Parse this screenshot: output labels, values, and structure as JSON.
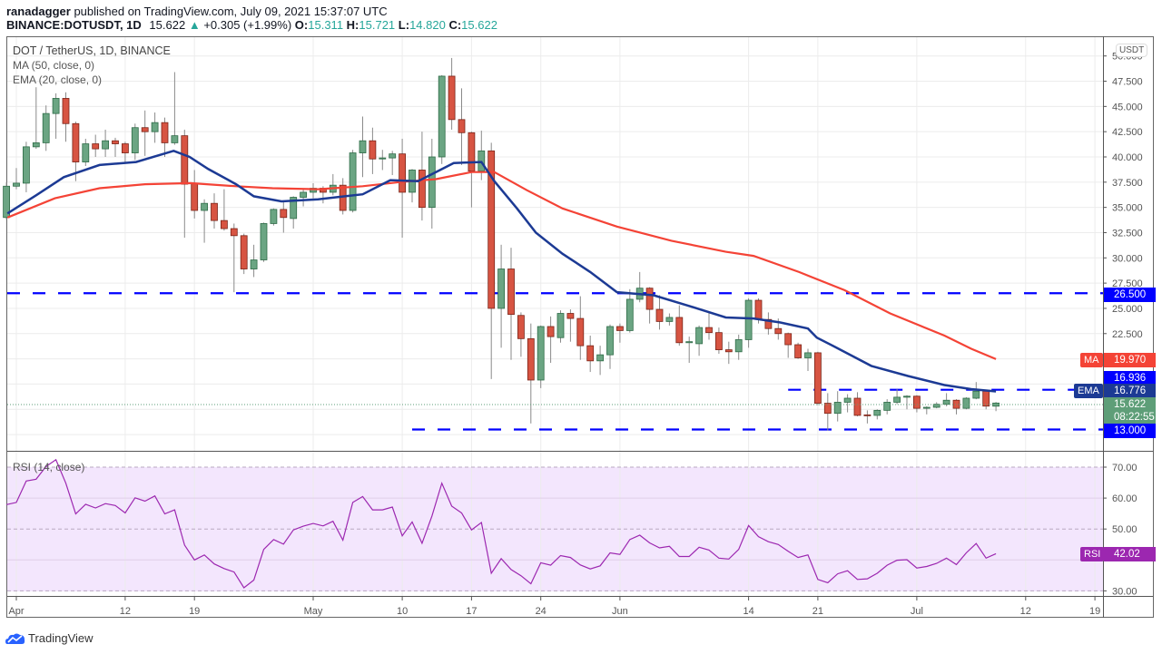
{
  "header": {
    "author": "ranadagger",
    "published_text": "published on TradingView.com, July 09, 2021 15:37:07 UTC",
    "symbol": "BINANCE:DOTUSDT, 1D",
    "last": "15.622",
    "change": "+0.305 (+1.99%)",
    "o_label": "O:",
    "o": "15.311",
    "h_label": "H:",
    "h": "15.721",
    "l_label": "L:",
    "l": "14.820",
    "c_label": "C:",
    "c": "15.622"
  },
  "legend": {
    "title": "DOT / TetherUS, 1D, BINANCE",
    "ma": "MA (50, close, 0)",
    "ema": "EMA (20, close, 0)",
    "rsi": "RSI (14, close)"
  },
  "axis": {
    "currency": "USDT",
    "price_ticks": [
      "50.000",
      "47.500",
      "45.000",
      "42.500",
      "40.000",
      "37.500",
      "35.000",
      "32.500",
      "30.000",
      "27.500",
      "25.000",
      "22.500"
    ],
    "rsi_ticks": [
      "70.00",
      "60.00",
      "50.00",
      "30.00"
    ],
    "time_ticks": [
      {
        "label": "Apr",
        "day": 0
      },
      {
        "label": "12",
        "day": 11
      },
      {
        "label": "19",
        "day": 18
      },
      {
        "label": "May",
        "day": 30
      },
      {
        "label": "10",
        "day": 39
      },
      {
        "label": "17",
        "day": 46
      },
      {
        "label": "24",
        "day": 53
      },
      {
        "label": "Jun",
        "day": 61
      },
      {
        "label": "14",
        "day": 74
      },
      {
        "label": "21",
        "day": 81
      },
      {
        "label": "Jul",
        "day": 91
      },
      {
        "label": "12",
        "day": 102
      },
      {
        "label": "19",
        "day": 109
      }
    ]
  },
  "price_labels": {
    "resistance": "26.500",
    "ma_tag": "MA",
    "ma": "19.970",
    "level2": "16.936",
    "ema_tag": "EMA",
    "ema": "16.776",
    "last": "15.622",
    "countdown": "08:22:55",
    "support": "13.000",
    "rsi_tag": "RSI",
    "rsi": "42.02"
  },
  "colors": {
    "up": "#6ba583",
    "up_border": "#2e6b47",
    "down": "#d75442",
    "down_border": "#7a2418",
    "ma": "#f44336",
    "ema": "#1c3a94",
    "hline": "#0000ff",
    "rsi": "#9c27b0",
    "last": "#5e9e78"
  },
  "chart_data": {
    "type": "candlestick",
    "title": "DOT / TetherUS, 1D, BINANCE",
    "first_day_index": -1,
    "ylim": [
      12.5,
      50
    ],
    "ohlc": [
      [
        34.0,
        37.5,
        33.8,
        37.1
      ],
      [
        37.1,
        38.9,
        36.8,
        37.4
      ],
      [
        37.4,
        41.5,
        36.5,
        41.0
      ],
      [
        41.0,
        46.9,
        40.8,
        41.4
      ],
      [
        41.4,
        45.1,
        40.6,
        44.3
      ],
      [
        44.3,
        46.3,
        41.8,
        45.8
      ],
      [
        45.8,
        46.4,
        41.5,
        43.3
      ],
      [
        43.3,
        43.5,
        37.6,
        39.5
      ],
      [
        39.5,
        41.8,
        39.1,
        41.3
      ],
      [
        41.3,
        42.2,
        40.0,
        40.8
      ],
      [
        40.8,
        42.7,
        40.0,
        41.6
      ],
      [
        41.6,
        41.9,
        40.0,
        41.3
      ],
      [
        41.3,
        41.5,
        39.4,
        40.4
      ],
      [
        40.4,
        43.3,
        39.7,
        42.9
      ],
      [
        42.9,
        44.6,
        40.1,
        42.5
      ],
      [
        42.5,
        44.4,
        41.4,
        43.4
      ],
      [
        43.4,
        43.9,
        40.0,
        41.4
      ],
      [
        41.4,
        48.4,
        41.2,
        42.1
      ],
      [
        42.1,
        42.7,
        32.0,
        37.3
      ],
      [
        37.4,
        38.7,
        33.9,
        34.7
      ],
      [
        34.7,
        35.8,
        31.5,
        35.4
      ],
      [
        35.4,
        36.4,
        32.9,
        33.7
      ],
      [
        33.7,
        36.8,
        32.7,
        32.9
      ],
      [
        32.9,
        33.4,
        26.6,
        32.2
      ],
      [
        32.2,
        32.4,
        28.4,
        28.9
      ],
      [
        28.9,
        31.3,
        28.1,
        29.8
      ],
      [
        29.8,
        33.5,
        29.6,
        33.4
      ],
      [
        33.4,
        34.9,
        33.2,
        34.8
      ],
      [
        34.8,
        35.5,
        32.5,
        34.0
      ],
      [
        33.9,
        36.1,
        32.9,
        36.0
      ],
      [
        36.0,
        36.8,
        35.1,
        36.5
      ],
      [
        36.5,
        37.4,
        35.9,
        36.9
      ],
      [
        36.9,
        37.1,
        35.4,
        36.5
      ],
      [
        36.5,
        38.3,
        36.2,
        37.2
      ],
      [
        37.2,
        37.9,
        34.3,
        34.7
      ],
      [
        34.7,
        40.7,
        34.5,
        40.4
      ],
      [
        40.4,
        44.0,
        38.0,
        41.6
      ],
      [
        41.6,
        42.9,
        38.3,
        39.8
      ],
      [
        39.8,
        40.7,
        38.7,
        39.9
      ],
      [
        39.9,
        40.6,
        38.2,
        40.3
      ],
      [
        40.3,
        41.8,
        32.0,
        36.5
      ],
      [
        36.5,
        38.8,
        35.5,
        38.7
      ],
      [
        38.7,
        42.5,
        33.7,
        35.0
      ],
      [
        35.0,
        41.8,
        32.9,
        40.0
      ],
      [
        40.0,
        48.1,
        39.3,
        48.0
      ],
      [
        48.0,
        49.8,
        42.7,
        43.7
      ],
      [
        43.7,
        46.8,
        39.2,
        42.4
      ],
      [
        42.4,
        42.5,
        35.0,
        38.6
      ],
      [
        38.6,
        42.6,
        37.7,
        40.6
      ],
      [
        40.6,
        41.4,
        18.0,
        25.0
      ],
      [
        25.0,
        31.3,
        21.1,
        28.9
      ],
      [
        28.9,
        31.0,
        19.9,
        24.4
      ],
      [
        24.3,
        24.6,
        20.2,
        22.0
      ],
      [
        22.0,
        23.5,
        13.6,
        17.9
      ],
      [
        17.9,
        23.3,
        17.1,
        23.2
      ],
      [
        23.2,
        24.2,
        19.6,
        22.2
      ],
      [
        22.1,
        24.8,
        21.6,
        24.5
      ],
      [
        24.5,
        24.9,
        21.7,
        24.0
      ],
      [
        24.0,
        26.2,
        19.9,
        21.3
      ],
      [
        21.3,
        22.3,
        18.7,
        19.8
      ],
      [
        19.8,
        21.3,
        18.4,
        20.4
      ],
      [
        20.4,
        23.4,
        19.0,
        23.2
      ],
      [
        23.2,
        23.5,
        21.6,
        22.8
      ],
      [
        22.8,
        26.9,
        22.6,
        25.9
      ],
      [
        25.9,
        28.6,
        25.6,
        27.0
      ],
      [
        27.0,
        27.1,
        23.5,
        24.9
      ],
      [
        24.9,
        26.3,
        22.9,
        23.7
      ],
      [
        23.7,
        24.5,
        23.3,
        24.1
      ],
      [
        24.1,
        25.3,
        21.3,
        21.6
      ],
      [
        21.6,
        22.2,
        19.6,
        21.7
      ],
      [
        21.5,
        23.3,
        20.3,
        23.1
      ],
      [
        23.1,
        24.6,
        21.9,
        22.6
      ],
      [
        22.6,
        23.1,
        20.5,
        20.9
      ],
      [
        20.9,
        21.7,
        19.5,
        20.7
      ],
      [
        20.7,
        22.4,
        19.9,
        21.9
      ],
      [
        21.9,
        26.0,
        21.1,
        25.8
      ],
      [
        25.8,
        26.0,
        23.5,
        23.9
      ],
      [
        23.9,
        24.6,
        22.4,
        23.0
      ],
      [
        23.0,
        24.0,
        21.9,
        22.5
      ],
      [
        22.5,
        22.6,
        20.1,
        21.4
      ],
      [
        21.4,
        21.6,
        20.0,
        20.1
      ],
      [
        20.1,
        21.0,
        18.8,
        20.6
      ],
      [
        20.6,
        20.7,
        15.4,
        15.6
      ],
      [
        15.6,
        16.6,
        12.9,
        14.6
      ],
      [
        14.6,
        16.8,
        13.8,
        15.7
      ],
      [
        15.7,
        16.5,
        14.7,
        16.1
      ],
      [
        16.1,
        16.7,
        14.3,
        14.4
      ],
      [
        14.45,
        14.9,
        13.6,
        14.4
      ],
      [
        14.4,
        15.0,
        14.0,
        14.9
      ],
      [
        14.9,
        16.0,
        14.5,
        15.7
      ],
      [
        15.7,
        17.0,
        15.5,
        16.2
      ],
      [
        16.2,
        16.4,
        15.0,
        16.3
      ],
      [
        16.3,
        16.4,
        14.7,
        15.1
      ],
      [
        15.1,
        15.3,
        14.5,
        15.2
      ],
      [
        15.2,
        15.7,
        15.1,
        15.5
      ],
      [
        15.5,
        16.6,
        15.3,
        15.9
      ],
      [
        15.9,
        16.0,
        14.5,
        15.1
      ],
      [
        15.1,
        16.2,
        15.0,
        16.1
      ],
      [
        16.1,
        17.7,
        16.0,
        16.8
      ],
      [
        16.8,
        16.9,
        15.0,
        15.317
      ],
      [
        15.311,
        15.721,
        14.82,
        15.622
      ]
    ],
    "ma50": [
      [
        -0.9,
        34.0
      ],
      [
        3.9,
        35.9
      ],
      [
        8.4,
        36.9
      ],
      [
        13,
        37.3
      ],
      [
        17.6,
        37.4
      ],
      [
        22.2,
        37.1
      ],
      [
        25.9,
        36.9
      ],
      [
        30.5,
        36.8
      ],
      [
        35,
        37.1
      ],
      [
        38.7,
        37.5
      ],
      [
        42.4,
        37.8
      ],
      [
        46,
        38.5
      ],
      [
        48.3,
        38.5
      ],
      [
        51.6,
        36.7
      ],
      [
        55.2,
        34.9
      ],
      [
        60.7,
        33.1
      ],
      [
        66.2,
        31.7
      ],
      [
        71.7,
        30.6
      ],
      [
        74.5,
        30.2
      ],
      [
        79.1,
        28.6
      ],
      [
        83.7,
        26.8
      ],
      [
        88.3,
        24.5
      ],
      [
        93.8,
        22.3
      ],
      [
        96.5,
        21.0
      ],
      [
        99,
        19.97
      ]
    ],
    "ema20": [
      [
        -0.9,
        34.4
      ],
      [
        2,
        36.2
      ],
      [
        4.8,
        38.0
      ],
      [
        8.4,
        39.2
      ],
      [
        12.1,
        39.5
      ],
      [
        15.9,
        40.6
      ],
      [
        17.5,
        40.0
      ],
      [
        19.4,
        38.8
      ],
      [
        22.2,
        37.3
      ],
      [
        24,
        36.1
      ],
      [
        26.8,
        35.6
      ],
      [
        30.5,
        35.8
      ],
      [
        35,
        36.3
      ],
      [
        37.8,
        37.7
      ],
      [
        40.6,
        37.6
      ],
      [
        42.4,
        38.5
      ],
      [
        44.2,
        39.4
      ],
      [
        47,
        39.5
      ],
      [
        48.3,
        37.6
      ],
      [
        50.6,
        34.9
      ],
      [
        52.5,
        32.5
      ],
      [
        55.2,
        30.4
      ],
      [
        58,
        28.6
      ],
      [
        60.7,
        26.6
      ],
      [
        64.4,
        26.3
      ],
      [
        68.1,
        25.2
      ],
      [
        71.7,
        24.1
      ],
      [
        74.5,
        24.0
      ],
      [
        77.2,
        23.6
      ],
      [
        80,
        23.0
      ],
      [
        80.9,
        22.1
      ],
      [
        82.7,
        21.2
      ],
      [
        86.4,
        19.3
      ],
      [
        90.1,
        18.3
      ],
      [
        93.8,
        17.4
      ],
      [
        96.5,
        17.0
      ],
      [
        99,
        16.776
      ]
    ],
    "hlines": [
      {
        "value": 26.5,
        "from_day": -1
      },
      {
        "value": 16.936,
        "from_day": 78
      },
      {
        "value": 13.0,
        "from_day": 40
      }
    ],
    "rsi": {
      "ylim": [
        30,
        70
      ],
      "bands": [
        30,
        70
      ],
      "values": [
        57.9,
        58.6,
        65.5,
        66.1,
        70.2,
        72.4,
        64.8,
        54.9,
        58.0,
        56.8,
        58.2,
        57.6,
        55.2,
        60.1,
        59.0,
        60.7,
        54.9,
        56.2,
        44.8,
        40.0,
        41.6,
        38.7,
        37.2,
        36.1,
        31.0,
        33.5,
        43.4,
        46.6,
        45.1,
        49.7,
        50.9,
        51.8,
        51.0,
        52.5,
        46.4,
        58.6,
        60.5,
        56.2,
        56.2,
        57.1,
        47.8,
        52.3,
        45.4,
        54.2,
        64.8,
        57.4,
        55.2,
        49.7,
        52.1,
        35.7,
        40.4,
        36.9,
        34.9,
        32.3,
        39.1,
        38.3,
        41.4,
        40.8,
        38.4,
        37.1,
        38.1,
        42.3,
        41.8,
        46.6,
        48.0,
        45.5,
        43.9,
        44.4,
        41.1,
        41.1,
        44.1,
        43.2,
        40.6,
        40.3,
        43.4,
        51.1,
        47.5,
        45.9,
        45.0,
        42.8,
        40.8,
        41.6,
        33.7,
        32.6,
        35.5,
        36.5,
        33.7,
        33.9,
        35.7,
        38.3,
        39.9,
        40.1,
        37.4,
        37.9,
        38.9,
        40.6,
        38.5,
        42.3,
        45.3,
        40.6,
        42.02
      ]
    }
  }
}
